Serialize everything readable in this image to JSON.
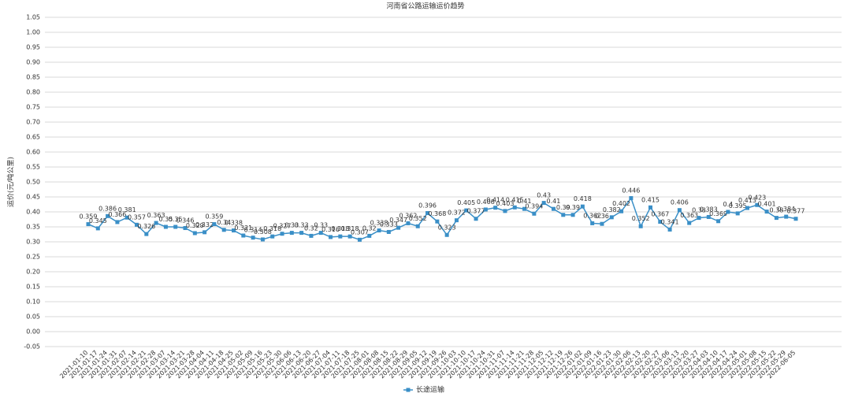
{
  "chart_data": {
    "type": "line",
    "title": "河南省公路运输运价趋势",
    "y_label": "运价(元/吨公里)",
    "categories": [
      "2021-01-10",
      "2021-01-17",
      "2021-01-24",
      "2021-01-31",
      "2021-02-07",
      "2021-02-14",
      "2021-02-21",
      "2021-02-28",
      "2021-03-07",
      "2021-03-14",
      "2021-03-21",
      "2021-03-28",
      "2021-04-04",
      "2021-04-11",
      "2021-04-18",
      "2021-04-25",
      "2021-05-02",
      "2021-05-09",
      "2021-05-16",
      "2021-05-23",
      "2021-05-30",
      "2021-06-06",
      "2021-06-13",
      "2021-06-20",
      "2021-06-27",
      "2021-07-04",
      "2021-07-11",
      "2021-07-18",
      "2021-07-25",
      "2021-08-01",
      "2021-08-08",
      "2021-08-15",
      "2021-08-22",
      "2021-08-29",
      "2021-09-05",
      "2021-09-12",
      "2021-09-19",
      "2021-09-26",
      "2021-10-03",
      "2021-10-10",
      "2021-10-17",
      "2021-10-24",
      "2021-10-31",
      "2021-11-07",
      "2021-11-14",
      "2021-11-21",
      "2021-11-28",
      "2021-12-05",
      "2021-12-12",
      "2021-12-19",
      "2021-12-26",
      "2022-01-02",
      "2022-01-09",
      "2022-01-16",
      "2022-01-23",
      "2022-01-30",
      "2022-02-06",
      "2022-02-13",
      "2022-02-20",
      "2022-02-27",
      "2022-03-06",
      "2022-03-13",
      "2022-03-20",
      "2022-03-27",
      "2022-04-03",
      "2022-04-10",
      "2022-04-17",
      "2022-04-24",
      "2022-05-01",
      "2022-05-08",
      "2022-05-15",
      "2022-05-22",
      "2022-05-29",
      "2022-06-05"
    ],
    "series": [
      {
        "name": "长途运输",
        "color": "#3a8fc7",
        "values": [
          0.359,
          0.345,
          0.386,
          0.366,
          0.381,
          0.357,
          0.326,
          0.363,
          0.35,
          0.35,
          0.346,
          0.329,
          0.332,
          0.359,
          0.34,
          0.338,
          0.321,
          0.314,
          0.308,
          0.318,
          0.327,
          0.33,
          0.33,
          0.32,
          0.33,
          0.316,
          0.318,
          0.318,
          0.307,
          0.32,
          0.338,
          0.333,
          0.347,
          0.362,
          0.352,
          0.396,
          0.368,
          0.323,
          0.372,
          0.405,
          0.377,
          0.408,
          0.414,
          0.403,
          0.415,
          0.41,
          0.394,
          0.43,
          0.41,
          0.39,
          0.39,
          0.418,
          0.362,
          0.36,
          0.382,
          0.402,
          0.446,
          0.352,
          0.415,
          0.367,
          0.341,
          0.406,
          0.363,
          0.38,
          0.383,
          0.369,
          0.4,
          0.395,
          0.413,
          0.423,
          0.401,
          0.38,
          0.384,
          0.377
        ]
      }
    ],
    "ylim": [
      -0.05,
      1.05
    ],
    "yticks": [
      {
        "value": -0.05,
        "label": "-0.05"
      },
      {
        "value": 0,
        "label": "0.00"
      },
      {
        "value": 0.05,
        "label": "0.05"
      },
      {
        "value": 0.1,
        "label": "0.10"
      },
      {
        "value": 0.15,
        "label": "0.15"
      },
      {
        "value": 0.2,
        "label": "0.20"
      },
      {
        "value": 0.25,
        "label": "0.25"
      },
      {
        "value": 0.3,
        "label": "0.30"
      },
      {
        "value": 0.35,
        "label": "0.35"
      },
      {
        "value": 0.4,
        "label": "0.40"
      },
      {
        "value": 0.45,
        "label": "0.45"
      },
      {
        "value": 0.5,
        "label": "0.50"
      },
      {
        "value": 0.55,
        "label": "0.55"
      },
      {
        "value": 0.6,
        "label": "0.60"
      },
      {
        "value": 0.65,
        "label": "0.65"
      },
      {
        "value": 0.7,
        "label": "0.70"
      },
      {
        "value": 0.75,
        "label": "0.75"
      },
      {
        "value": 0.8,
        "label": "0.80"
      },
      {
        "value": 0.85,
        "label": "0.85"
      },
      {
        "value": 0.9,
        "label": "0.90"
      },
      {
        "value": 0.95,
        "label": "0.95"
      },
      {
        "value": 1,
        "label": "1.00"
      },
      {
        "value": 1.05,
        "label": "1.05"
      }
    ],
    "grid": true,
    "legend": "bottom"
  }
}
